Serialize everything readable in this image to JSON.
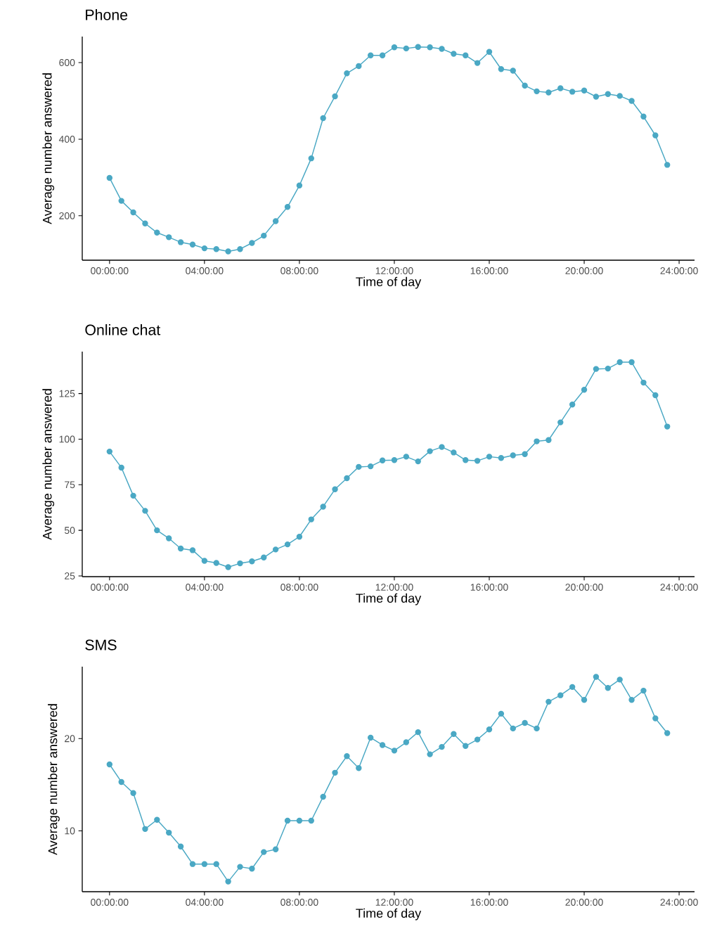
{
  "chart_data": [
    {
      "type": "line",
      "title": "Phone",
      "xlabel": "Time of day",
      "ylabel": "Average number answered",
      "marker": "circle",
      "line_style": "solid",
      "grid": false,
      "x": [
        0,
        0.5,
        1,
        1.5,
        2,
        2.5,
        3,
        3.5,
        4,
        4.5,
        5,
        5.5,
        6,
        6.5,
        7,
        7.5,
        8,
        8.5,
        9,
        9.5,
        10,
        10.5,
        11,
        11.5,
        12,
        12.5,
        13,
        13.5,
        14,
        14.5,
        15,
        15.5,
        16,
        16.5,
        17,
        17.5,
        18,
        18.5,
        19,
        19.5,
        20,
        20.5,
        21,
        21.5,
        22,
        22.5,
        23,
        23.5
      ],
      "series": [
        {
          "color": "#4aa8c4",
          "values": [
            299,
            239,
            209,
            180,
            156,
            144,
            131,
            125,
            115,
            113,
            107,
            113,
            129,
            148,
            186,
            223,
            279,
            350,
            455,
            512,
            572,
            591,
            619,
            619,
            640,
            637,
            641,
            640,
            636,
            623,
            619,
            599,
            628,
            583,
            579,
            540,
            525,
            522,
            533,
            524,
            527,
            511,
            518,
            513,
            500,
            459,
            410,
            333
          ]
        }
      ],
      "xlim": [
        -1.15,
        24.65
      ],
      "ylim": [
        84,
        668
      ],
      "xticks": [
        {
          "value": 0,
          "label": "00:00:00"
        },
        {
          "value": 4,
          "label": "04:00:00"
        },
        {
          "value": 8,
          "label": "08:00:00"
        },
        {
          "value": 12,
          "label": "12:00:00"
        },
        {
          "value": 16,
          "label": "16:00:00"
        },
        {
          "value": 20,
          "label": "20:00:00"
        },
        {
          "value": 24,
          "label": "24:00:00"
        }
      ],
      "yticks": [
        200,
        400,
        600
      ]
    },
    {
      "type": "line",
      "title": "Online chat",
      "xlabel": "Time of day",
      "ylabel": "Average number answered",
      "marker": "circle",
      "line_style": "solid",
      "grid": false,
      "x": [
        0,
        0.5,
        1,
        1.5,
        2,
        2.5,
        3,
        3.5,
        4,
        4.5,
        5,
        5.5,
        6,
        6.5,
        7,
        7.5,
        8,
        8.5,
        9,
        9.5,
        10,
        10.5,
        11,
        11.5,
        12,
        12.5,
        13,
        13.5,
        14,
        14.5,
        15,
        15.5,
        16,
        16.5,
        17,
        17.5,
        18,
        18.5,
        19,
        19.5,
        20,
        20.5,
        21,
        21.5,
        22,
        22.5,
        23,
        23.5
      ],
      "series": [
        {
          "color": "#4aa8c4",
          "values": [
            93.2,
            84.4,
            69.0,
            60.7,
            50.0,
            45.6,
            40.0,
            39.1,
            33.3,
            32.1,
            29.8,
            31.9,
            33.0,
            35.1,
            39.5,
            42.3,
            46.5,
            56.0,
            63.0,
            72.5,
            78.6,
            84.8,
            85.1,
            88.3,
            88.5,
            90.4,
            87.8,
            93.4,
            95.7,
            92.7,
            88.5,
            88.1,
            90.4,
            89.7,
            91.1,
            91.8,
            98.8,
            99.5,
            109.2,
            119.0,
            127.1,
            138.5,
            138.7,
            142.2,
            142.2,
            131.0,
            124.1,
            106.9
          ]
        }
      ],
      "xlim": [
        -1.15,
        24.65
      ],
      "ylim": [
        24.6,
        148
      ],
      "xticks": [
        {
          "value": 0,
          "label": "00:00:00"
        },
        {
          "value": 4,
          "label": "04:00:00"
        },
        {
          "value": 8,
          "label": "08:00:00"
        },
        {
          "value": 12,
          "label": "12:00:00"
        },
        {
          "value": 16,
          "label": "16:00:00"
        },
        {
          "value": 20,
          "label": "20:00:00"
        },
        {
          "value": 24,
          "label": "24:00:00"
        }
      ],
      "yticks": [
        25,
        50,
        75,
        100,
        125
      ]
    },
    {
      "type": "line",
      "title": "SMS",
      "xlabel": "Time of day",
      "ylabel": "Average number answered",
      "marker": "circle",
      "line_style": "solid",
      "grid": false,
      "x": [
        0,
        0.5,
        1,
        1.5,
        2,
        2.5,
        3,
        3.5,
        4,
        4.5,
        5,
        5.5,
        6,
        6.5,
        7,
        7.5,
        8,
        8.5,
        9,
        9.5,
        10,
        10.5,
        11,
        11.5,
        12,
        12.5,
        13,
        13.5,
        14,
        14.5,
        15,
        15.5,
        16,
        16.5,
        17,
        17.5,
        18,
        18.5,
        19,
        19.5,
        20,
        20.5,
        21,
        21.5,
        22,
        22.5,
        23,
        23.5
      ],
      "series": [
        {
          "color": "#4aa8c4",
          "values": [
            17.2,
            15.3,
            14.1,
            10.2,
            11.2,
            9.8,
            8.3,
            6.4,
            6.4,
            6.4,
            4.5,
            6.1,
            5.9,
            7.7,
            8.0,
            11.1,
            11.1,
            11.1,
            13.7,
            16.3,
            18.1,
            16.8,
            20.1,
            19.3,
            18.7,
            19.6,
            20.7,
            18.3,
            19.1,
            20.5,
            19.2,
            19.9,
            21.0,
            22.7,
            21.1,
            21.7,
            21.1,
            24.0,
            24.7,
            25.6,
            24.2,
            26.7,
            25.5,
            26.4,
            24.2,
            25.2,
            22.2,
            20.6
          ]
        }
      ],
      "xlim": [
        -1.15,
        24.65
      ],
      "ylim": [
        3.4,
        27.8
      ],
      "xticks": [
        {
          "value": 0,
          "label": "00:00:00"
        },
        {
          "value": 4,
          "label": "04:00:00"
        },
        {
          "value": 8,
          "label": "08:00:00"
        },
        {
          "value": 12,
          "label": "12:00:00"
        },
        {
          "value": 16,
          "label": "16:00:00"
        },
        {
          "value": 20,
          "label": "20:00:00"
        },
        {
          "value": 24,
          "label": "24:00:00"
        }
      ],
      "yticks": [
        10,
        20
      ]
    }
  ]
}
